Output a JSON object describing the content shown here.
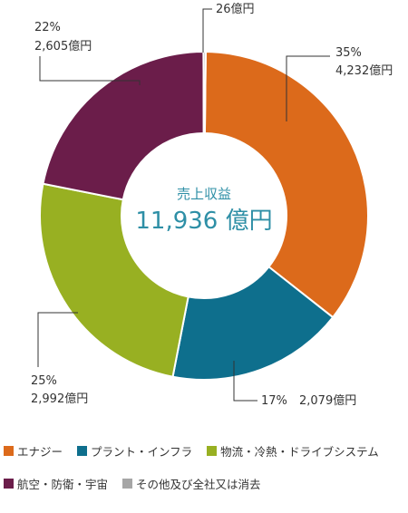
{
  "chart_data": {
    "type": "pie",
    "center": {
      "title": "売上収益",
      "value": "11,936 億円"
    },
    "categories": [
      "エナジー",
      "プラント・インフラ",
      "物流・冷熱・ドライブシステム",
      "航空・防衛・宇宙",
      "その他及び全社又は消去"
    ],
    "values": [
      4232,
      2079,
      2992,
      2605,
      26
    ],
    "unit": "億円",
    "labels": [
      {
        "pct": "35%",
        "amount": "4,232億円"
      },
      {
        "pct": "17%",
        "amount": "2,079億円"
      },
      {
        "pct": "25%",
        "amount": "2,992億円"
      },
      {
        "pct": "22%",
        "amount": "2,605億円"
      },
      {
        "pct": "",
        "amount": "26億円"
      }
    ],
    "colors": [
      "#dc6a1b",
      "#0e6f8d",
      "#98b022",
      "#6b1d4a",
      "#a6a6a6"
    ],
    "legend_position": "bottom"
  }
}
